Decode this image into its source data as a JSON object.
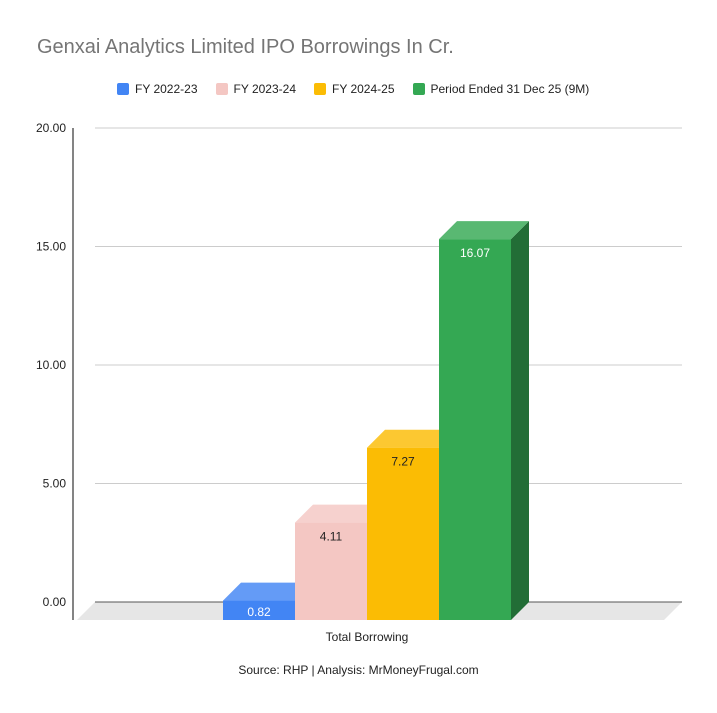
{
  "chart_data": {
    "type": "bar",
    "title": "Genxai Analytics Limited IPO Borrowings In Cr.",
    "categories": [
      "Total Borrowing"
    ],
    "series": [
      {
        "name": "FY 2022-23",
        "values": [
          0.82
        ],
        "labels": [
          "0.82"
        ],
        "color": "#4285f4",
        "label_color": "#ffffff"
      },
      {
        "name": "FY 2023-24",
        "values": [
          4.11
        ],
        "labels": [
          "4.11"
        ],
        "color": "#f4c7c3",
        "label_color": "#222222"
      },
      {
        "name": "FY 2024-25",
        "values": [
          7.27
        ],
        "labels": [
          "7.27"
        ],
        "color": "#fbbc04",
        "label_color": "#222222"
      },
      {
        "name": "Period Ended 31 Dec 25 (9M)",
        "values": [
          16.07
        ],
        "labels": [
          "16.07"
        ],
        "color": "#34a853",
        "label_color": "#ffffff"
      }
    ],
    "y_ticks": [
      "0.00",
      "5.00",
      "10.00",
      "15.00",
      "20.00"
    ],
    "ylim": [
      0,
      20
    ],
    "grid": true,
    "legend_position": "top",
    "three_d": true
  },
  "footer": {
    "source": "Source: RHP | Analysis: MrMoneyFrugal.com"
  }
}
